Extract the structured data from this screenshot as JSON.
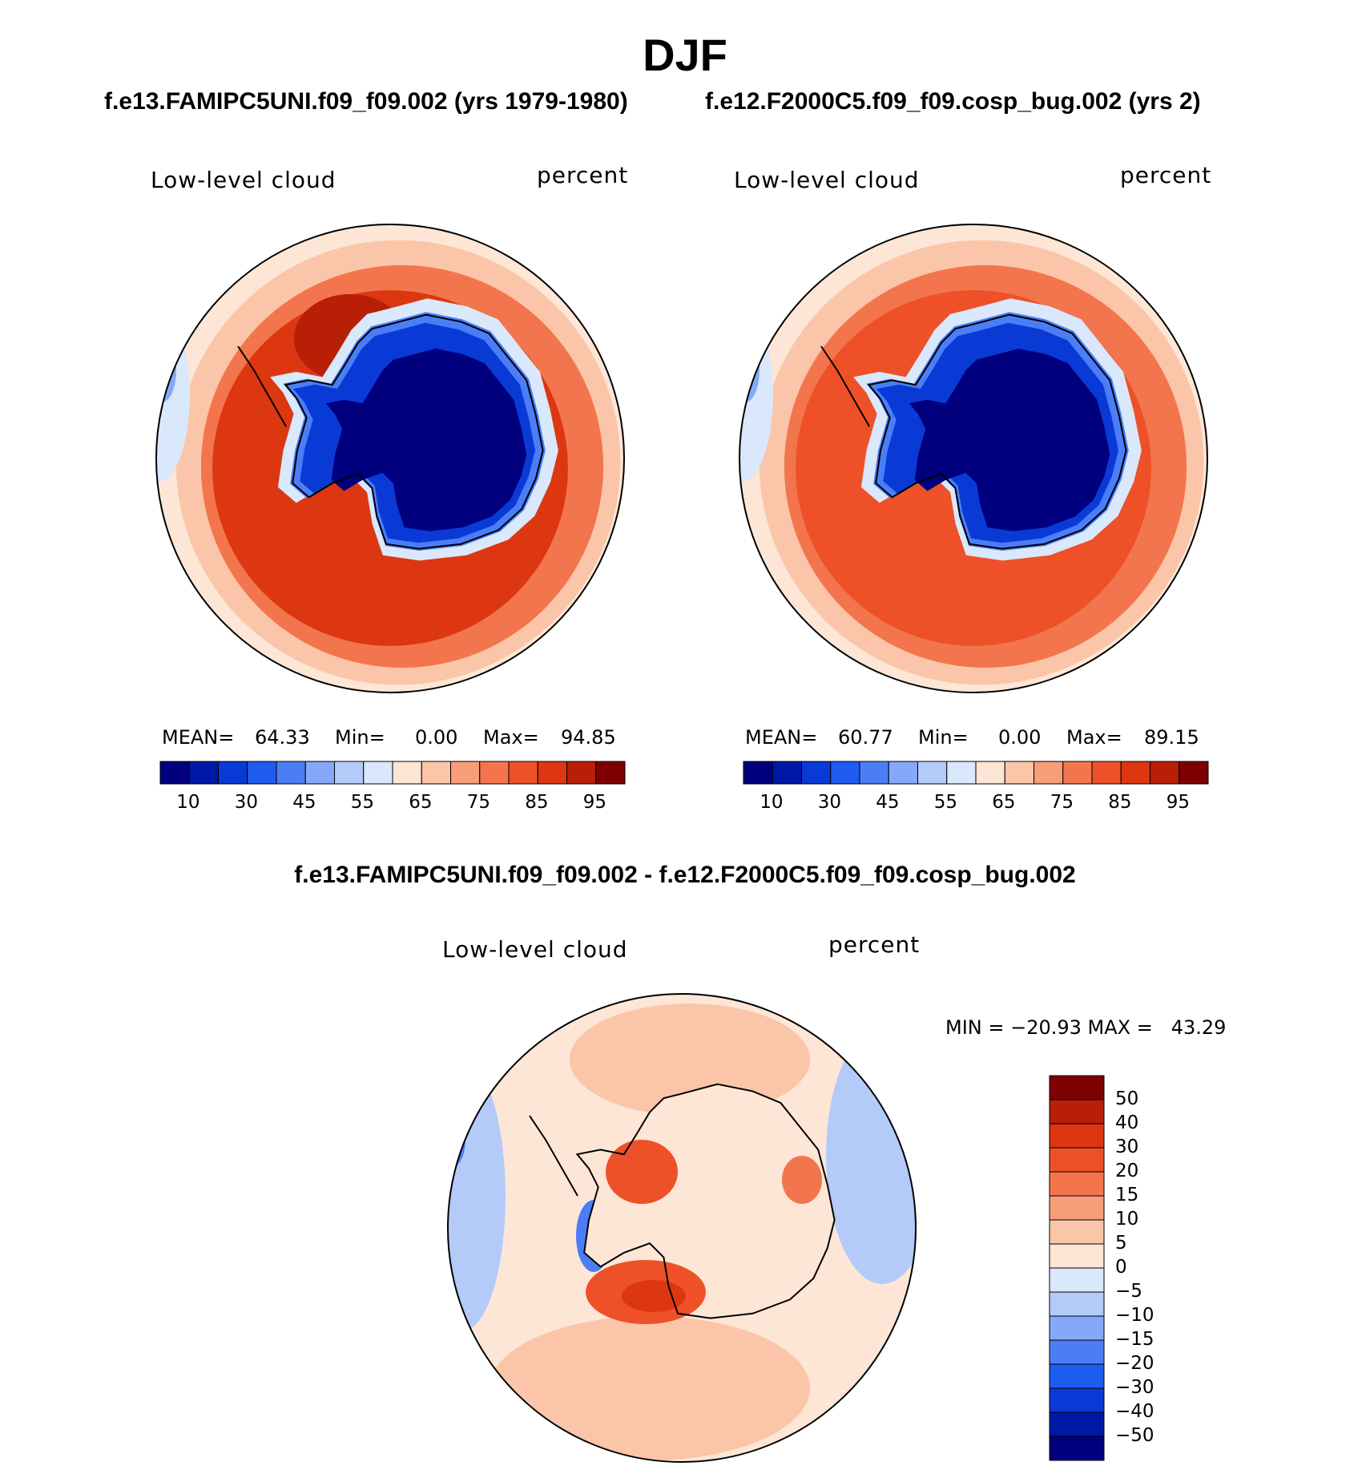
{
  "header": {
    "season": "DJF",
    "left_case": "f.e13.FAMIPC5UNI.f09_f09.002 (yrs 1979-1980)",
    "right_case": "f.e12.F2000C5.f09_f09.cosp_bug.002 (yrs 2)",
    "diff_title": "f.e13.FAMIPC5UNI.f09_f09.002 - f.e12.F2000C5.f09_f09.cosp_bug.002"
  },
  "chart_data": [
    {
      "type": "heatmap",
      "projection": "south-polar-stereographic",
      "variable": "Low-level cloud",
      "units": "percent",
      "mean_label": "MEAN=",
      "mean": "64.33",
      "min_label": "Min=",
      "min": "0.00",
      "max_label": "Max=",
      "max": "94.85",
      "levels": [
        5,
        10,
        20,
        30,
        40,
        45,
        50,
        55,
        60,
        65,
        70,
        75,
        80,
        85,
        90,
        95
      ],
      "colorbar_labels": [
        "10",
        "30",
        "45",
        "55",
        "65",
        "75",
        "85",
        "95"
      ],
      "colors": [
        "#00007f",
        "#0018a8",
        "#0a3ad6",
        "#1f5cf0",
        "#4b7ef6",
        "#85a8f8",
        "#b4cbf9",
        "#d9e8fb",
        "#fde6d6",
        "#fbc5a9",
        "#f79d78",
        "#f3754d",
        "#ee5127",
        "#dc3711",
        "#b71f07",
        "#7f0000"
      ]
    },
    {
      "type": "heatmap",
      "projection": "south-polar-stereographic",
      "variable": "Low-level cloud",
      "units": "percent",
      "mean_label": "MEAN=",
      "mean": "60.77",
      "min_label": "Min=",
      "min": "0.00",
      "max_label": "Max=",
      "max": "89.15",
      "levels": [
        5,
        10,
        20,
        30,
        40,
        45,
        50,
        55,
        60,
        65,
        70,
        75,
        80,
        85,
        90,
        95
      ],
      "colorbar_labels": [
        "10",
        "30",
        "45",
        "55",
        "65",
        "75",
        "85",
        "95"
      ],
      "colors": [
        "#00007f",
        "#0018a8",
        "#0a3ad6",
        "#1f5cf0",
        "#4b7ef6",
        "#85a8f8",
        "#b4cbf9",
        "#d9e8fb",
        "#fde6d6",
        "#fbc5a9",
        "#f79d78",
        "#f3754d",
        "#ee5127",
        "#dc3711",
        "#b71f07",
        "#7f0000"
      ]
    },
    {
      "type": "heatmap",
      "projection": "south-polar-stereographic",
      "variable": "Low-level cloud",
      "units": "percent",
      "stats_text": "MIN = −20.93 MAX =   43.29",
      "min": -20.93,
      "max": 43.29,
      "levels": [
        -50,
        -40,
        -30,
        -20,
        -15,
        -10,
        -5,
        0,
        5,
        10,
        15,
        20,
        30,
        40,
        50
      ],
      "colorbar_labels": [
        "50",
        "40",
        "30",
        "20",
        "15",
        "10",
        "5",
        "0",
        "−5",
        "−10",
        "−15",
        "−20",
        "−30",
        "−40",
        "−50"
      ],
      "colors": [
        "#7f0000",
        "#b71f07",
        "#dc3711",
        "#ee5127",
        "#f3754d",
        "#f79d78",
        "#fbc5a9",
        "#fde6d6",
        "#d9e8fb",
        "#b4cbf9",
        "#85a8f8",
        "#4b7ef6",
        "#1f5cf0",
        "#0a3ad6",
        "#0018a8",
        "#00007f"
      ]
    }
  ]
}
